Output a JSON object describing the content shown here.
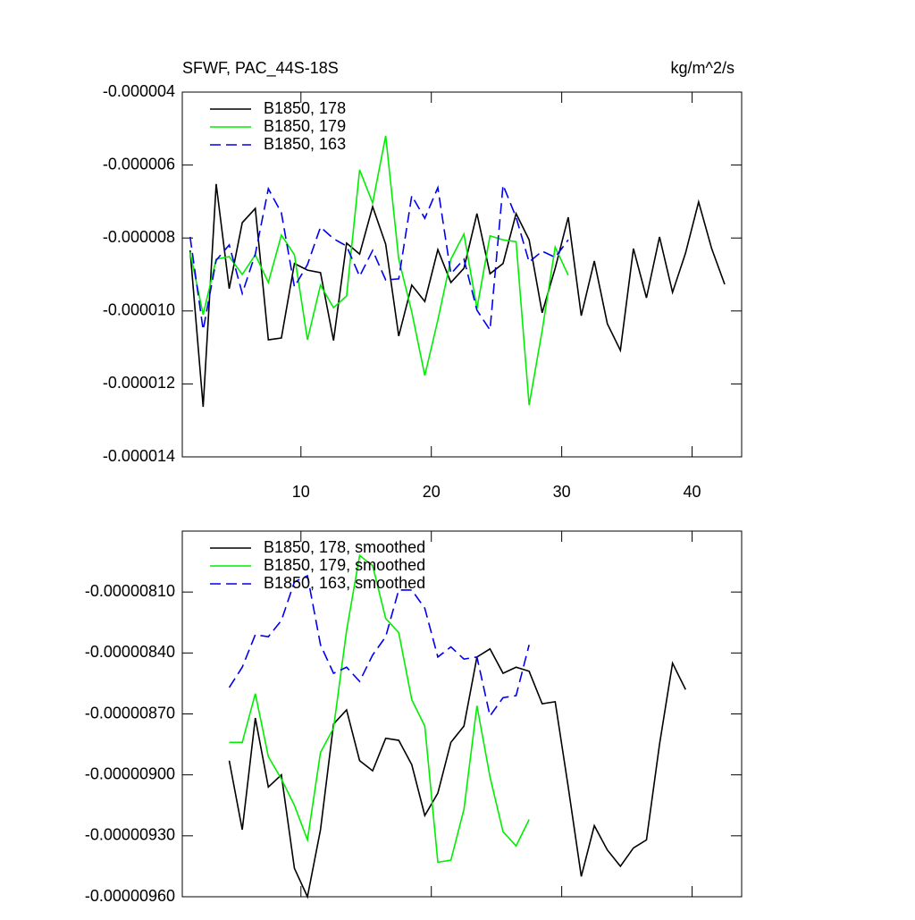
{
  "chart_data": [
    {
      "type": "line",
      "title": "SFWF, PAC_44S-18S",
      "units": "kg/m^2/s",
      "x": [
        1.5,
        2.5,
        3.5,
        4.5,
        5.5,
        6.5,
        7.5,
        8.5,
        9.5,
        10.5,
        11.5,
        12.5,
        13.5,
        14.5,
        15.5,
        16.5,
        17.5,
        18.5,
        19.5,
        20.5,
        21.5,
        22.5,
        23.5,
        24.5,
        25.5,
        26.5,
        27.5,
        28.5,
        29.5,
        30.5,
        31.5,
        32.5,
        33.5,
        34.5,
        35.5,
        36.5,
        37.5,
        38.5,
        39.5,
        40.5,
        41.5,
        42.5
      ],
      "xlim": [
        0.9,
        43.8
      ],
      "xticks": [
        10,
        20,
        30,
        40
      ],
      "ylim": [
        -1.4e-05,
        -4e-06
      ],
      "yticks": [
        {
          "value": -1.4e-05,
          "label": "-0.000014"
        },
        {
          "value": -1.2e-05,
          "label": "-0.000012"
        },
        {
          "value": -1e-05,
          "label": "-0.000010"
        },
        {
          "value": -8e-06,
          "label": "-0.000008"
        },
        {
          "value": -6e-06,
          "label": "-0.000006"
        },
        {
          "value": -4e-06,
          "label": "-0.000004"
        }
      ],
      "series": [
        {
          "name": "B1850, 178",
          "color": "#000000",
          "style": "solid",
          "values": [
            -8.34e-06,
            -1.263e-05,
            -6.52e-06,
            -9.39e-06,
            -7.58e-06,
            -7.19e-06,
            -1.079e-05,
            -1.074e-05,
            -8.7e-06,
            -8.88e-06,
            -8.95e-06,
            -1.081e-05,
            -8.14e-06,
            -8.44e-06,
            -7.14e-06,
            -8.17e-06,
            -1.069e-05,
            -9.29e-06,
            -9.74e-06,
            -8.32e-06,
            -9.22e-06,
            -8.83e-06,
            -7.33e-06,
            -8.98e-06,
            -8.7e-06,
            -7.33e-06,
            -8.05e-06,
            -1.005e-05,
            -8.83e-06,
            -7.43e-06,
            -1.013e-05,
            -8.63e-06,
            -1.035e-05,
            -1.108e-05,
            -8.29e-06,
            -9.64e-06,
            -7.97e-06,
            -9.49e-06,
            -8.41e-06,
            -7.01e-06,
            -8.29e-06,
            -9.27e-06
          ]
        },
        {
          "name": "B1850, 179",
          "color": "#00ee00",
          "style": "solid",
          "values": [
            -8.39e-06,
            -1.01e-05,
            -8.58e-06,
            -8.51e-06,
            -9e-06,
            -8.46e-06,
            -9.22e-06,
            -7.92e-06,
            -8.46e-06,
            -1.079e-05,
            -9.29e-06,
            -9.91e-06,
            -9.59e-06,
            -6.13e-06,
            -7.04e-06,
            -5.2e-06,
            -8.58e-06,
            -1.003e-05,
            -1.177e-05,
            -1.025e-05,
            -8.58e-06,
            -7.89e-06,
            -9.93e-06,
            -7.94e-06,
            -8.05e-06,
            -8.1e-06,
            -1.258e-05,
            -1.054e-05,
            -8.25e-06,
            -9.02e-06,
            null,
            null,
            null,
            null,
            null,
            null,
            null,
            null,
            null,
            null,
            null,
            null
          ]
        },
        {
          "name": "B1850, 163",
          "color": "#0000ee",
          "style": "dashed",
          "values": [
            -7.97e-06,
            -1.052e-05,
            -8.61e-06,
            -8.19e-06,
            -9.52e-06,
            -8.44e-06,
            -6.65e-06,
            -7.31e-06,
            -9.34e-06,
            -8.73e-06,
            -7.7e-06,
            -8.02e-06,
            -8.22e-06,
            -9.05e-06,
            -8.34e-06,
            -9.15e-06,
            -9.12e-06,
            -6.84e-06,
            -7.46e-06,
            -6.62e-06,
            -8.98e-06,
            -8.58e-06,
            -9.98e-06,
            -1.052e-05,
            -6.55e-06,
            -7.43e-06,
            -8.66e-06,
            -8.36e-06,
            -8.53e-06,
            -8.05e-06,
            null,
            null,
            null,
            null,
            null,
            null,
            null,
            null,
            null,
            null,
            null,
            null
          ]
        }
      ]
    },
    {
      "type": "line",
      "x": [
        4.5,
        5.5,
        6.5,
        7.5,
        8.5,
        9.5,
        10.5,
        11.5,
        12.5,
        13.5,
        14.5,
        15.5,
        16.5,
        17.5,
        18.5,
        19.5,
        20.5,
        21.5,
        22.5,
        23.5,
        24.5,
        25.5,
        26.5,
        27.5,
        28.5,
        29.5,
        30.5,
        31.5,
        32.5,
        33.5,
        34.5,
        35.5,
        36.5,
        37.5,
        38.5,
        39.5
      ],
      "xlim": [
        0.9,
        43.8
      ],
      "xticks": [
        10,
        20,
        30,
        40
      ],
      "ylim": [
        -9.6e-06,
        -7.8e-06
      ],
      "yticks": [
        {
          "value": -9.6e-06,
          "label": "-0.00000960"
        },
        {
          "value": -9.3e-06,
          "label": "-0.00000930"
        },
        {
          "value": -9e-06,
          "label": "-0.00000900"
        },
        {
          "value": -8.7e-06,
          "label": "-0.00000870"
        },
        {
          "value": -8.4e-06,
          "label": "-0.00000840"
        },
        {
          "value": -8.1e-06,
          "label": "-0.00000810"
        }
      ],
      "series": [
        {
          "name": "B1850, 178, smoothed",
          "color": "#000000",
          "style": "solid",
          "values": [
            -8.93e-06,
            -9.27e-06,
            -8.72e-06,
            -9.06e-06,
            -9e-06,
            -9.46e-06,
            -9.6e-06,
            -9.27e-06,
            -8.75e-06,
            -8.68e-06,
            -8.93e-06,
            -8.98e-06,
            -8.82e-06,
            -8.83e-06,
            -8.95e-06,
            -9.2e-06,
            -9.09e-06,
            -8.84e-06,
            -8.76e-06,
            -8.42e-06,
            -8.38e-06,
            -8.5e-06,
            -8.47e-06,
            -8.49e-06,
            -8.65e-06,
            -8.64e-06,
            -9.06e-06,
            -9.5e-06,
            -9.25e-06,
            -9.37e-06,
            -9.45e-06,
            -9.36e-06,
            -9.32e-06,
            -8.85e-06,
            -8.45e-06,
            -8.58e-06
          ]
        },
        {
          "name": "B1850, 179, smoothed",
          "color": "#00ee00",
          "style": "solid",
          "values": [
            -8.84e-06,
            -8.84e-06,
            -8.6e-06,
            -8.91e-06,
            -9.02e-06,
            -9.15e-06,
            -9.32e-06,
            -8.89e-06,
            -8.77e-06,
            -8.29e-06,
            -7.92e-06,
            -7.97e-06,
            -8.23e-06,
            -8.3e-06,
            -8.63e-06,
            -8.76e-06,
            -9.43e-06,
            -9.42e-06,
            -9.17e-06,
            -8.66e-06,
            -9.01e-06,
            -9.28e-06,
            -9.35e-06,
            -9.22e-06,
            null,
            null,
            null,
            null,
            null,
            null,
            null,
            null,
            null,
            null,
            null,
            null
          ]
        },
        {
          "name": "B1850, 163, smoothed",
          "color": "#0000ee",
          "style": "dashed",
          "values": [
            -8.57e-06,
            -8.47e-06,
            -8.31e-06,
            -8.32e-06,
            -8.24e-06,
            -8.05e-06,
            -8.02e-06,
            -8.36e-06,
            -8.5e-06,
            -8.47e-06,
            -8.54e-06,
            -8.41e-06,
            -8.32e-06,
            -8.09e-06,
            -8.09e-06,
            -8.18e-06,
            -8.42e-06,
            -8.37e-06,
            -8.43e-06,
            -8.42e-06,
            -8.71e-06,
            -8.62e-06,
            -8.61e-06,
            -8.36e-06,
            null,
            null,
            null,
            null,
            null,
            null,
            null,
            null,
            null,
            null,
            null,
            null
          ]
        }
      ]
    }
  ]
}
